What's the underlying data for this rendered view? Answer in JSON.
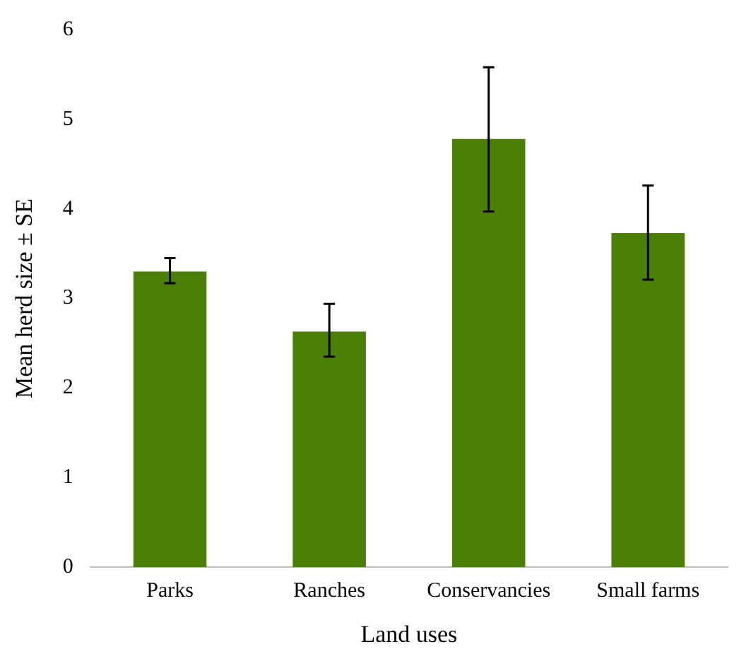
{
  "chart_data": {
    "type": "bar",
    "xlabel": "Land uses",
    "ylabel": "Mean herd size ± SE",
    "categories": [
      "Parks",
      "Ranches",
      "Conservancies",
      "Small farms"
    ],
    "values": [
      3.3,
      2.63,
      4.78,
      3.73
    ],
    "errors": [
      [
        3.17,
        3.45
      ],
      [
        2.35,
        2.94
      ],
      [
        3.97,
        5.58
      ],
      [
        3.21,
        4.26
      ]
    ],
    "color": "#4b7f05",
    "ylim": [
      0,
      6
    ],
    "yticks": [
      0,
      1,
      2,
      3,
      4,
      5,
      6
    ],
    "grid": false,
    "legend": false
  }
}
